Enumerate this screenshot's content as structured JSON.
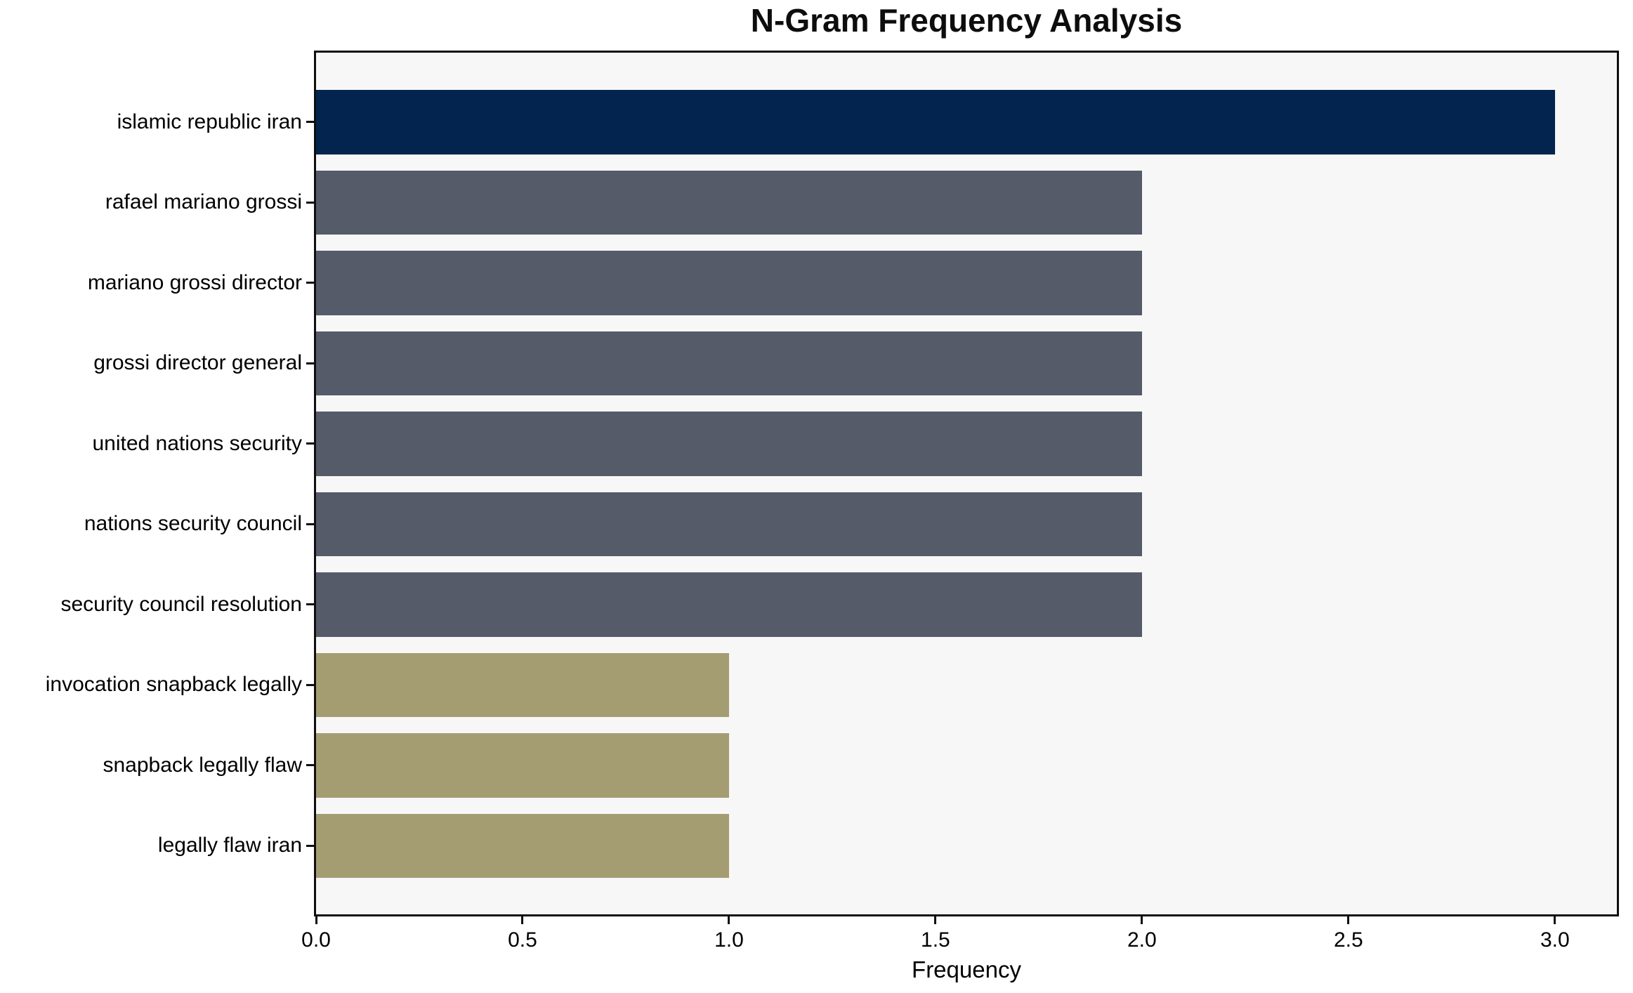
{
  "chart_data": {
    "type": "bar",
    "orientation": "horizontal",
    "title": "N-Gram Frequency Analysis",
    "xlabel": "Frequency",
    "ylabel": "",
    "categories": [
      "islamic republic iran",
      "rafael mariano grossi",
      "mariano grossi director",
      "grossi director general",
      "united nations security",
      "nations security council",
      "security council resolution",
      "invocation snapback legally",
      "snapback legally flaw",
      "legally flaw iran"
    ],
    "values": [
      3,
      2,
      2,
      2,
      2,
      2,
      2,
      1,
      1,
      1
    ],
    "bar_colors": [
      "#02244E",
      "#565B6A",
      "#565B6A",
      "#565B6A",
      "#565B6A",
      "#565B6A",
      "#565B6A",
      "#A59D72",
      "#A59D72",
      "#A59D72"
    ],
    "x_tick_labels": [
      "0.0",
      "0.5",
      "1.0",
      "1.5",
      "2.0",
      "2.5",
      "3.0"
    ],
    "x_tick_values": [
      0,
      0.5,
      1,
      1.5,
      2,
      2.5,
      3
    ],
    "xlim": [
      0,
      3.15
    ],
    "grid": false,
    "legend_position": "none",
    "colors": {
      "plot_background": "#f7f7f7",
      "figure_background": "#ffffff",
      "axis": "#0f0f0f",
      "text": "#000000"
    }
  }
}
